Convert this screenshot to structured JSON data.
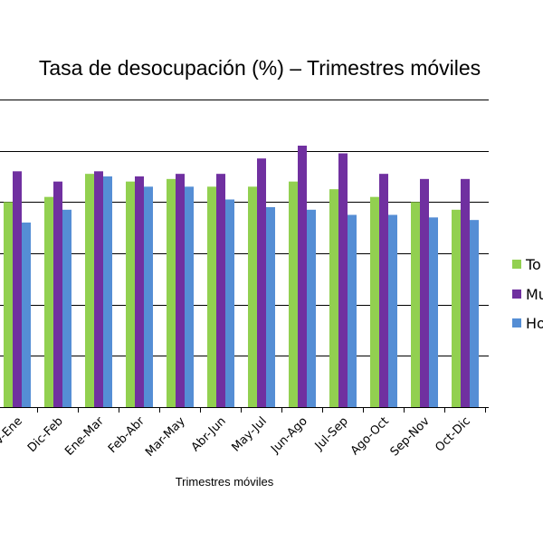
{
  "chart_data": {
    "type": "bar",
    "title": "Tasa de desocupación (%) – Trimestres móviles",
    "xlabel": "Trimestres móviles",
    "ylabel": "",
    "ylim": [
      0,
      12
    ],
    "gridlines": [
      0,
      2,
      4,
      6,
      8,
      10,
      12
    ],
    "grid": true,
    "legend_position": "right",
    "categories": [
      "Nov-Ene",
      "Dic-Feb",
      "Ene-Mar",
      "Feb-Abr",
      "Mar-May",
      "Abr-Jun",
      "May-Jul",
      "Jun-Ago",
      "Jul-Sep",
      "Ago-Oct",
      "Sep-Nov",
      "Oct-Dic"
    ],
    "series": [
      {
        "name": "To",
        "color": "#92d050",
        "values": [
          8.0,
          8.2,
          9.1,
          8.8,
          8.9,
          8.6,
          8.6,
          8.8,
          8.5,
          8.2,
          8.0,
          7.7
        ]
      },
      {
        "name": "Mu",
        "color": "#7030a0",
        "values": [
          9.2,
          8.8,
          9.2,
          9.0,
          9.1,
          9.1,
          9.7,
          10.2,
          9.9,
          9.1,
          8.9,
          8.9
        ]
      },
      {
        "name": "Ho",
        "color": "#558ed5",
        "values": [
          7.2,
          7.7,
          9.0,
          8.6,
          8.6,
          8.1,
          7.8,
          7.7,
          7.5,
          7.5,
          7.4,
          7.3
        ]
      }
    ]
  }
}
